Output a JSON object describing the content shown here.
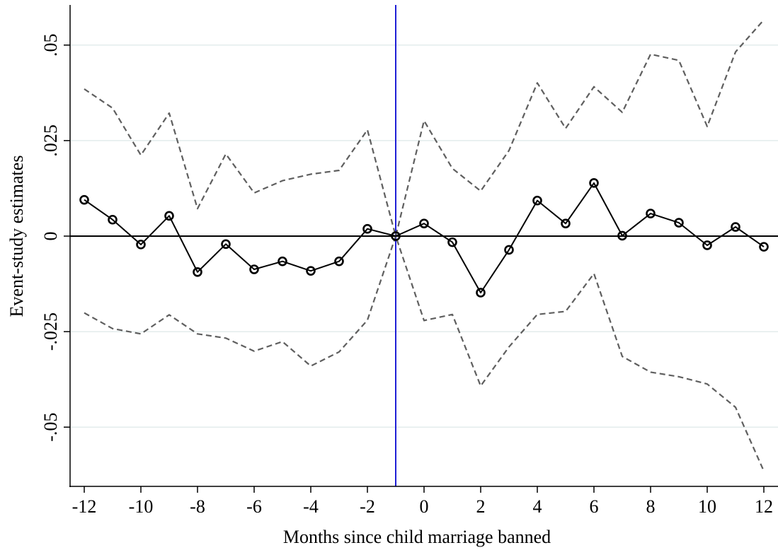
{
  "chart_data": {
    "type": "line",
    "title": "",
    "xlabel": "Months since child marriage banned",
    "ylabel": "Event-study estimates",
    "x": [
      -12,
      -11,
      -10,
      -9,
      -8,
      -7,
      -6,
      -5,
      -4,
      -3,
      -2,
      -1,
      0,
      1,
      2,
      3,
      4,
      5,
      6,
      7,
      8,
      9,
      10,
      11,
      12
    ],
    "series": [
      {
        "name": "",
        "role": "point estimate",
        "style": "solid line with hollow circle markers",
        "values": [
          0.0095,
          0.0043,
          -0.0022,
          0.0053,
          -0.0094,
          -0.0021,
          -0.0087,
          -0.0066,
          -0.0091,
          -0.0066,
          0.0019,
          0.0,
          0.0033,
          -0.0016,
          -0.0148,
          -0.0036,
          0.0093,
          0.0033,
          0.0139,
          0.0001,
          0.0059,
          0.0035,
          -0.0024,
          0.0024,
          -0.0028
        ]
      },
      {
        "name": "",
        "role": "upper confidence bound",
        "style": "dashed gray line",
        "values": [
          0.0385,
          0.0335,
          0.0212,
          0.0322,
          0.0072,
          0.0215,
          0.0113,
          0.0145,
          0.0162,
          0.0172,
          0.0278,
          0.0,
          0.0302,
          0.0177,
          0.0118,
          0.0224,
          0.0401,
          0.0282,
          0.0391,
          0.0324,
          0.0476,
          0.046,
          0.0287,
          0.0482,
          0.0566
        ]
      },
      {
        "name": "",
        "role": "lower confidence bound",
        "style": "dashed gray line",
        "values": [
          -0.0201,
          -0.0242,
          -0.0256,
          -0.0206,
          -0.0256,
          -0.0267,
          -0.0301,
          -0.0276,
          -0.034,
          -0.0303,
          -0.022,
          0.0,
          -0.0221,
          -0.0205,
          -0.0392,
          -0.029,
          -0.0205,
          -0.0197,
          -0.0098,
          -0.0315,
          -0.0356,
          -0.0368,
          -0.0387,
          -0.0448,
          -0.0615
        ]
      }
    ],
    "xlim": [
      -12.5,
      12.5
    ],
    "ylim": [
      -0.0655,
      0.0605
    ],
    "xticks": [
      -12,
      -10,
      -8,
      -6,
      -4,
      -2,
      0,
      2,
      4,
      6,
      8,
      10,
      12
    ],
    "xtick_labels": [
      "-12",
      "-10",
      "-8",
      "-6",
      "-4",
      "-2",
      "0",
      "2",
      "4",
      "6",
      "8",
      "10",
      "12"
    ],
    "yticks": [
      -0.05,
      -0.025,
      0,
      0.025,
      0.05
    ],
    "ytick_labels": [
      "-.05",
      "-.025",
      "0",
      ".025",
      ".05"
    ],
    "reference_lines": [
      {
        "axis": "x",
        "value": -1,
        "color": "#1f1fd6"
      },
      {
        "axis": "y",
        "value": 0,
        "color": "#000000"
      }
    ],
    "grid": true,
    "grid_axis": "y",
    "legend": "none",
    "colors": {
      "estimate": "#000000",
      "ci": "#5f5f5f",
      "grid": "#e3ecec",
      "event_line": "#1f1fd6",
      "zero_line": "#000000"
    }
  }
}
